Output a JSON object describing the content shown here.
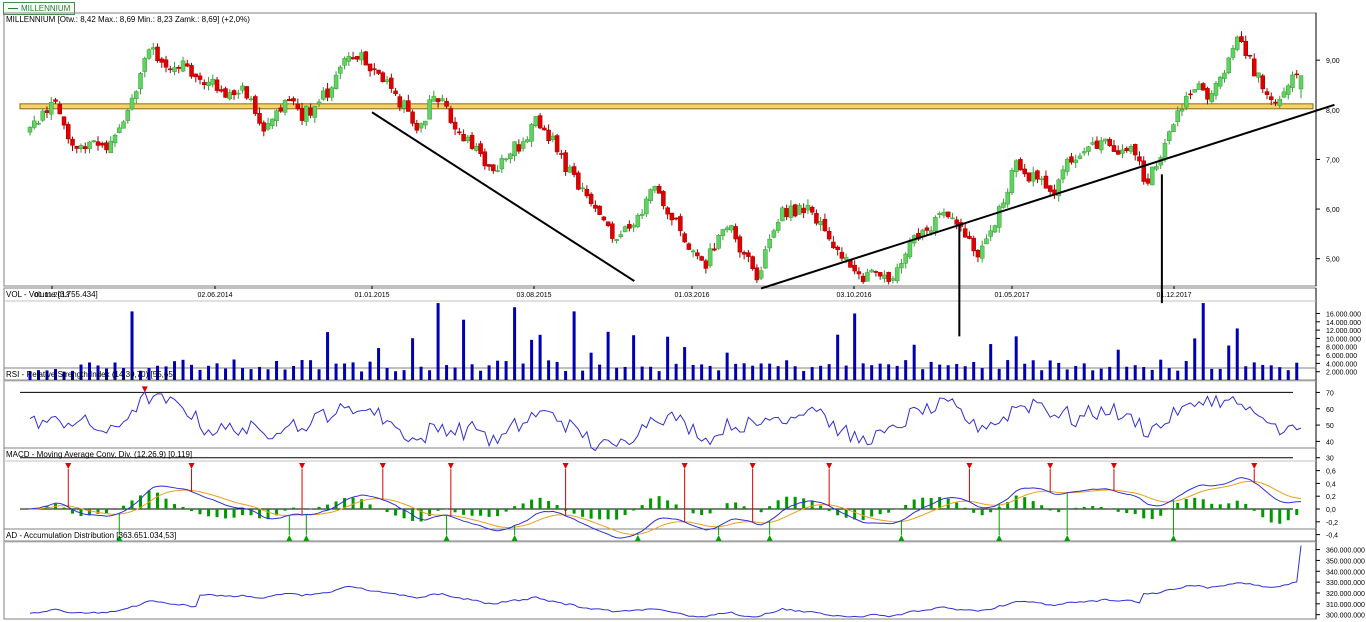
{
  "window": {
    "tab_label": "MILLENNIUM"
  },
  "colors": {
    "up": "#5fd35f",
    "down": "#e00000",
    "volume": "#0000b0",
    "indicator_line": "#3030d0",
    "signal_line": "#e8a020",
    "hist_pos": "#009900",
    "marker_sell": "#e00000",
    "marker_buy": "#00a000",
    "support_band": "#f6d36a",
    "trendline": "#000000",
    "grid": "#000000"
  },
  "chart_data": [
    {
      "panel": "price",
      "type": "candlestick",
      "header": "MILLENNIUM [Otw.: 8,42  Max.: 8,69  Min.: 8,23  Zamk.: 8,69] (+2,0%)",
      "x_tick_labels": [
        "01.11.2013",
        "02.06.2014",
        "01.01.2015",
        "03.08.2015",
        "01.03.2016",
        "03.10.2016",
        "01.05.2017",
        "01.12.2017"
      ],
      "y_tick_labels": [
        "9,00",
        "8,00",
        "7,00",
        "6,00",
        "5,00"
      ],
      "y_ticks": [
        9,
        8,
        7,
        6,
        5
      ],
      "ylim": [
        4.45,
        9.95
      ],
      "close_path": [
        7.6,
        7.9,
        8.1,
        7.5,
        7.2,
        7.4,
        7.2,
        7.6,
        8.3,
        9.3,
        9.0,
        8.8,
        8.9,
        8.5,
        8.6,
        8.2,
        8.5,
        8.1,
        7.7,
        7.9,
        8.3,
        7.9,
        8.1,
        8.4,
        8.8,
        9.2,
        8.9,
        8.7,
        8.3,
        8.0,
        7.6,
        8.2,
        8.1,
        7.6,
        7.3,
        6.9,
        6.8,
        7.2,
        7.3,
        7.9,
        7.5,
        7.0,
        6.6,
        6.3,
        5.8,
        5.4,
        5.7,
        5.9,
        6.4,
        6.1,
        5.6,
        5.2,
        4.8,
        5.4,
        5.7,
        5.1,
        4.6,
        5.3,
        6.0,
        5.9,
        6.1,
        5.7,
        5.3,
        4.9,
        4.6,
        4.9,
        4.6,
        4.7,
        5.3,
        5.6,
        5.8,
        5.9,
        5.4,
        5.1,
        5.5,
        6.1,
        7.0,
        6.7,
        6.6,
        6.2,
        7.0,
        7.2,
        7.3,
        7.4,
        7.0,
        7.3,
        6.5,
        6.9,
        7.6,
        8.1,
        8.5,
        8.3,
        8.8,
        9.4,
        9.0,
        8.5,
        8.2,
        8.6,
        8.7
      ],
      "band": {
        "low": 8.02,
        "high": 8.12
      },
      "trendlines": [
        {
          "from": [
            "2015-01-01",
            7.95
          ],
          "to": [
            "2015-12-15",
            4.55
          ]
        },
        {
          "from": [
            "2016-06-01",
            4.4
          ],
          "to": [
            "2018-07-01",
            8.1
          ]
        }
      ]
    },
    {
      "panel": "volume",
      "type": "bar",
      "header": "VOL - Volume [3.755.434]",
      "y_tick_labels": [
        "16.000.000",
        "14.000.000",
        "12.000.000",
        "10.000.000",
        "8.000.000",
        "6.000.000",
        "4.000.000",
        "2.000.000"
      ],
      "y_ticks": [
        16,
        14,
        12,
        10,
        8,
        6,
        4,
        2
      ],
      "ylim": [
        0,
        19
      ],
      "units": "million shares"
    },
    {
      "panel": "rsi",
      "type": "line",
      "header": "RSI - Relative Strength Index (14,30,70) [55,65]",
      "y_tick_labels": [
        "70",
        "60",
        "50",
        "40",
        "30"
      ],
      "y_ticks": [
        70,
        60,
        50,
        40,
        30
      ],
      "ylim": [
        28,
        77
      ],
      "levels": [
        70,
        30
      ]
    },
    {
      "panel": "macd",
      "type": "line+histogram",
      "header": "MACD - Moving Average Conv. Div. (12,26,9) [0,119]",
      "y_tick_labels": [
        "0,6",
        "0,4",
        "0,2",
        "0,0",
        "-0,2",
        "-0,4"
      ],
      "y_ticks": [
        0.6,
        0.4,
        0.2,
        0,
        -0.2,
        -0.4
      ],
      "ylim": [
        -0.5,
        0.75
      ]
    },
    {
      "panel": "ad",
      "type": "line",
      "header": "AD - Accumulation Distribution [363.651.034,53]",
      "y_tick_labels": [
        "360.000.000",
        "350.000.000",
        "340.000.000",
        "330.000.000",
        "320.000.000",
        "310.000.000",
        "300.000.000"
      ],
      "y_ticks": [
        360,
        350,
        340,
        330,
        320,
        310,
        300
      ],
      "ylim": [
        296,
        367
      ],
      "units": "million"
    }
  ]
}
